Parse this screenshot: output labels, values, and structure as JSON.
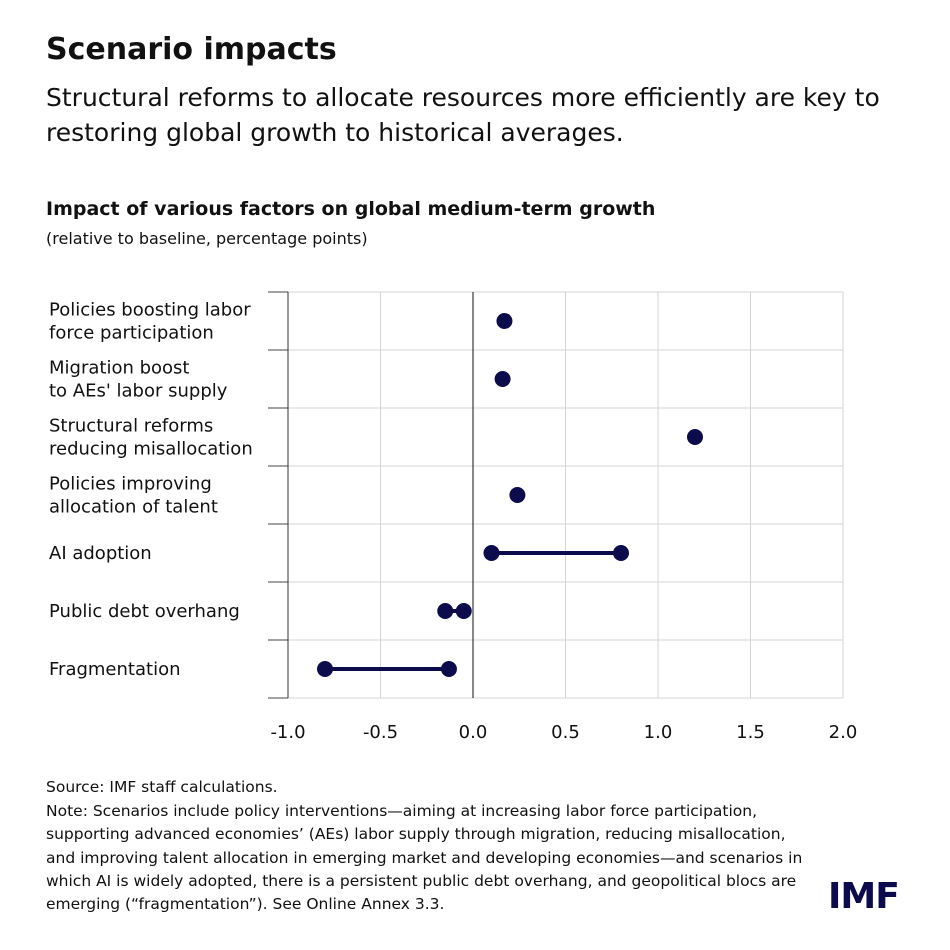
{
  "title": "Scenario impacts",
  "subtitle": "Structural reforms to allocate resources more efficiently are key to restoring global growth to historical averages.",
  "chart_data": {
    "type": "dumbbell",
    "title": "Impact of various factors on global medium-term growth",
    "subtitle": "(relative to baseline, percentage points)",
    "categories": [
      [
        "Policies boosting labor",
        "force participation"
      ],
      [
        "Migration boost",
        "to AEs' labor supply"
      ],
      [
        "Structural reforms",
        "reducing misallocation"
      ],
      [
        "Policies improving",
        "allocation of talent"
      ],
      [
        "AI adoption"
      ],
      [
        "Public debt overhang"
      ],
      [
        "Fragmentation"
      ]
    ],
    "values": [
      [
        0.17
      ],
      [
        0.16
      ],
      [
        1.2
      ],
      [
        0.24
      ],
      [
        0.1,
        0.8
      ],
      [
        -0.15,
        -0.05
      ],
      [
        -0.8,
        -0.13
      ]
    ],
    "color": "#0c0c4c",
    "xlim": [
      -1,
      2
    ],
    "xticks": [
      {
        "value": -1,
        "label": "-1.0"
      },
      -0.5,
      {
        "value": 0,
        "label": "0.0"
      },
      0.5,
      {
        "value": 1,
        "label": "1.0"
      },
      1.5,
      {
        "value": 2,
        "label": "2.0"
      }
    ],
    "grid": true
  },
  "source": "Source: IMF staff calculations.",
  "note": "Note: Scenarios include policy interventions—aiming at increasing labor force participation, supporting advanced economies’ (AEs) labor supply through migration, reducing misallocation, and improving talent allocation in emerging market and developing economies—and scenarios in which AI is widely adopted, there is a persistent public debt overhang, and geopolitical blocs are emerging (“fragmentation”). See Online Annex 3.3.",
  "logo": "IMF"
}
